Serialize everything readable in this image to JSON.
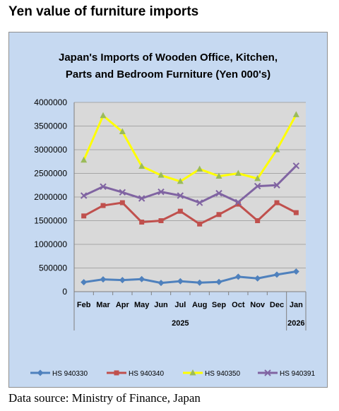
{
  "page": {
    "title": "Yen value of furniture imports",
    "source": "Data source: Ministry of Finance, Japan"
  },
  "chart_data": {
    "type": "line",
    "title_line1": "Japan's Imports of  Wooden  Office, Kitchen,",
    "title_line2": "Parts and Bedroom Furniture (Yen 000's)",
    "categories": [
      "Feb",
      "Mar",
      "Apr",
      "May",
      "Jun",
      "Jul",
      "Aug",
      "Sep",
      "Oct",
      "Nov",
      "Dec",
      "Jan"
    ],
    "year_labels": [
      {
        "label": "2025",
        "from": 0,
        "to": 10
      },
      {
        "label": "2026",
        "from": 11,
        "to": 11
      }
    ],
    "yticks": [
      "0",
      "500000",
      "1000000",
      "1500000",
      "2000000",
      "2500000",
      "3000000",
      "3500000",
      "4000000"
    ],
    "ylim": [
      0,
      4000000
    ],
    "grid": true,
    "plot_background": "#d9d9d9",
    "legend_position": "bottom",
    "series": [
      {
        "name": "HS 940330",
        "color": "#4f81bd",
        "marker": "diamond",
        "values": [
          200000,
          260000,
          245000,
          265000,
          185000,
          220000,
          190000,
          205000,
          315000,
          280000,
          360000,
          425000
        ]
      },
      {
        "name": "HS 940340",
        "color": "#c0504d",
        "marker": "square",
        "values": [
          1600000,
          1820000,
          1880000,
          1470000,
          1500000,
          1700000,
          1430000,
          1630000,
          1850000,
          1500000,
          1880000,
          1670000
        ]
      },
      {
        "name": "HS 940350",
        "color": "#ffff00",
        "marker": "triangle",
        "values": [
          2780000,
          3720000,
          3380000,
          2650000,
          2460000,
          2330000,
          2590000,
          2440000,
          2500000,
          2390000,
          3000000,
          3740000
        ]
      },
      {
        "name": "HS 940391",
        "color": "#8064a2",
        "marker": "x",
        "values": [
          2030000,
          2220000,
          2100000,
          1970000,
          2110000,
          2030000,
          1880000,
          2080000,
          1890000,
          2230000,
          2250000,
          2660000
        ]
      }
    ]
  }
}
